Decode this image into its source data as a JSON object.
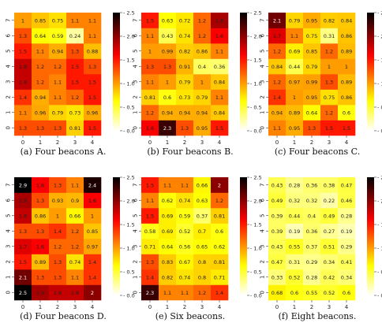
{
  "chart_data": [
    {
      "type": "heatmap",
      "caption": "(a) Four beacons A.",
      "x": [
        "0",
        "1",
        "2",
        "3",
        "4"
      ],
      "y": [
        "0",
        "1",
        "2",
        "3",
        "4",
        "5",
        "6",
        "7"
      ],
      "values": [
        [
          1.3,
          1.3,
          1.3,
          0.81,
          1.5
        ],
        [
          1.1,
          0.96,
          0.79,
          0.73,
          0.96
        ],
        [
          1.4,
          0.94,
          1.1,
          1.2,
          1.5
        ],
        [
          1.8,
          1.2,
          1.1,
          1.5,
          1.5
        ],
        [
          1.8,
          1.2,
          1.2,
          1.5,
          1.3
        ],
        [
          1.5,
          1.1,
          0.94,
          1.3,
          0.88
        ],
        [
          1.3,
          0.64,
          0.59,
          0.24,
          1.1
        ],
        [
          1.0,
          0.85,
          0.75,
          1.1,
          1.1
        ]
      ],
      "colorbar": {
        "min": 0.0,
        "max": 2.5,
        "ticks": [
          "0.0",
          "0.5",
          "1.0",
          "1.5",
          "2.0",
          "2.5"
        ]
      }
    },
    {
      "type": "heatmap",
      "caption": "(b) Four beacons B.",
      "x": [
        "0",
        "1",
        "2",
        "3",
        "4"
      ],
      "y": [
        "0",
        "1",
        "2",
        "3",
        "4",
        "5",
        "6",
        "7"
      ],
      "values": [
        [
          1.6,
          2.3,
          1.3,
          0.95,
          1.5
        ],
        [
          1.2,
          0.94,
          0.94,
          0.94,
          0.84
        ],
        [
          0.81,
          0.6,
          0.73,
          0.79,
          1.1
        ],
        [
          1.1,
          1.0,
          0.79,
          1.0,
          0.84
        ],
        [
          1.3,
          1.3,
          0.91,
          0.4,
          0.36
        ],
        [
          1.0,
          0.99,
          0.82,
          0.86,
          1.1
        ],
        [
          1.1,
          0.43,
          0.74,
          1.2,
          1.6
        ],
        [
          1.5,
          0.63,
          0.72,
          1.2,
          1.9
        ]
      ],
      "colorbar": {
        "min": 0.0,
        "max": 2.5,
        "ticks": [
          "0.0",
          "0.5",
          "1.0",
          "1.5",
          "2.0",
          "2.5"
        ]
      }
    },
    {
      "type": "heatmap",
      "caption": "(c) Four beacons C.",
      "x": [
        "0",
        "1",
        "2",
        "3",
        "4"
      ],
      "y": [
        "0",
        "1",
        "2",
        "3",
        "4",
        "5",
        "6",
        "7"
      ],
      "values": [
        [
          1.1,
          0.95,
          1.3,
          1.5,
          1.5
        ],
        [
          0.94,
          0.89,
          0.64,
          1.2,
          0.6
        ],
        [
          1.4,
          1.0,
          0.95,
          0.75,
          0.86
        ],
        [
          1.2,
          0.97,
          0.99,
          1.3,
          0.89
        ],
        [
          0.84,
          0.44,
          0.79,
          1.0,
          1.0
        ],
        [
          1.2,
          0.69,
          0.85,
          1.2,
          0.89
        ],
        [
          1.7,
          1.1,
          0.75,
          0.31,
          0.86
        ],
        [
          2.1,
          0.79,
          0.95,
          0.82,
          0.84
        ]
      ],
      "colorbar": {
        "min": 0.0,
        "max": 2.5,
        "ticks": [
          "0.0",
          "0.5",
          "1.0",
          "1.5",
          "2.0",
          "2.5"
        ]
      }
    },
    {
      "type": "heatmap",
      "caption": "(d) Four beacons D.",
      "x": [
        "0",
        "1",
        "2",
        "3",
        "4"
      ],
      "y": [
        "0",
        "1",
        "2",
        "3",
        "4",
        "5",
        "6",
        "7"
      ],
      "values": [
        [
          2.5,
          1.9,
          1.8,
          1.8,
          2.0
        ],
        [
          2.1,
          1.3,
          1.3,
          1.1,
          1.4
        ],
        [
          1.5,
          0.89,
          1.3,
          0.74,
          1.4
        ],
        [
          1.7,
          1.6,
          1.2,
          1.2,
          0.97
        ],
        [
          1.3,
          1.3,
          1.4,
          1.2,
          0.85
        ],
        [
          1.8,
          0.86,
          1.0,
          0.66,
          1.0
        ],
        [
          1.9,
          1.3,
          0.93,
          0.9,
          1.6
        ],
        [
          2.9,
          1.6,
          1.3,
          1.1,
          2.4
        ]
      ],
      "colorbar": {
        "min": 0.0,
        "max": 2.5,
        "ticks": [
          "0.0",
          "0.5",
          "1.0",
          "1.5",
          "2.0",
          "2.5"
        ]
      }
    },
    {
      "type": "heatmap",
      "caption": "(e) Six beacons.",
      "x": [
        "0",
        "1",
        "2",
        "3",
        "4"
      ],
      "y": [
        "0",
        "1",
        "2",
        "3",
        "4",
        "5",
        "6",
        "7"
      ],
      "values": [
        [
          2.3,
          1.1,
          1.1,
          1.2,
          1.4
        ],
        [
          1.4,
          0.82,
          0.74,
          0.8,
          0.71
        ],
        [
          1.3,
          0.83,
          0.67,
          0.8,
          0.81
        ],
        [
          0.71,
          0.64,
          0.56,
          0.65,
          0.62
        ],
        [
          0.58,
          0.69,
          0.52,
          0.7,
          0.6
        ],
        [
          1.5,
          0.69,
          0.59,
          0.37,
          0.81
        ],
        [
          1.1,
          0.62,
          0.74,
          0.63,
          1.2
        ],
        [
          1.5,
          1.1,
          1.1,
          0.66,
          2.0
        ]
      ],
      "colorbar": {
        "min": 0.0,
        "max": 2.5,
        "ticks": [
          "0.0",
          "0.5",
          "1.0",
          "1.5",
          "2.0",
          "2.5"
        ]
      }
    },
    {
      "type": "heatmap",
      "caption": "(f) Eight beacons.",
      "x": [
        "0",
        "1",
        "2",
        "3",
        "4"
      ],
      "y": [
        "0",
        "1",
        "2",
        "3",
        "4",
        "5",
        "6",
        "7"
      ],
      "values": [
        [
          0.68,
          0.6,
          0.55,
          0.52,
          0.6
        ],
        [
          0.33,
          0.52,
          0.28,
          0.42,
          0.34
        ],
        [
          0.47,
          0.31,
          0.29,
          0.34,
          0.41
        ],
        [
          0.43,
          0.55,
          0.37,
          0.51,
          0.29
        ],
        [
          0.39,
          0.19,
          0.36,
          0.27,
          0.19
        ],
        [
          0.39,
          0.44,
          0.4,
          0.49,
          0.28
        ],
        [
          0.49,
          0.32,
          0.32,
          0.22,
          0.46
        ],
        [
          0.43,
          0.28,
          0.36,
          0.38,
          0.47
        ]
      ],
      "colorbar": {
        "min": 0.0,
        "max": 2.5,
        "ticks": [
          "0.0",
          "0.5",
          "1.0",
          "1.5",
          "2.0",
          "2.5"
        ]
      }
    }
  ]
}
